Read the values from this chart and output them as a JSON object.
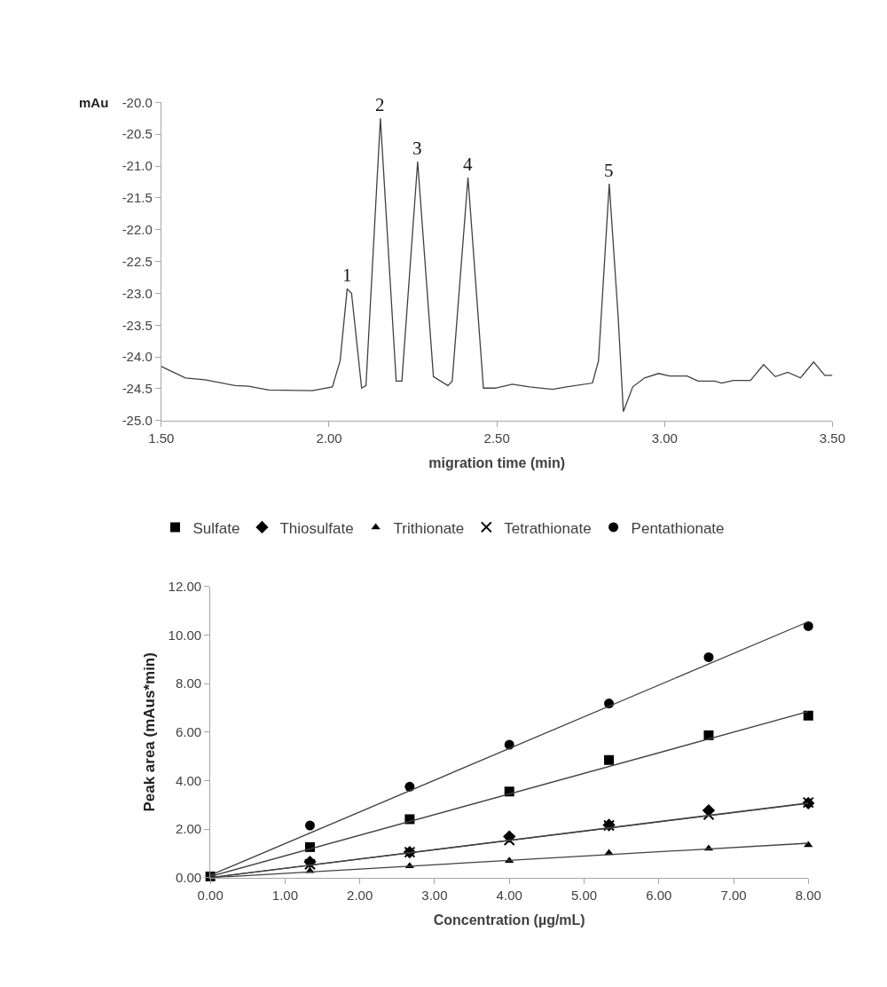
{
  "chart_data": [
    {
      "type": "line",
      "xlabel": "migration time (min)",
      "ylabel": "mAu",
      "xlim": [
        1.5,
        3.5
      ],
      "ylim": [
        -25.0,
        -20.0
      ],
      "xticks": [
        {
          "value": 1.5,
          "label": "1.50"
        },
        {
          "value": 2.0,
          "label": "2.00"
        },
        {
          "value": 2.5,
          "label": "2.50"
        },
        {
          "value": 3.0,
          "label": "3.00"
        },
        {
          "value": 3.5,
          "label": "3.50"
        }
      ],
      "yticks": [
        {
          "value": -25.0,
          "label": "-25.0"
        },
        {
          "value": -24.5,
          "label": "-24.5"
        },
        {
          "value": -24.0,
          "label": "-24.0"
        },
        {
          "value": -23.5,
          "label": "-23.5"
        },
        {
          "value": -23.0,
          "label": "-23.0"
        },
        {
          "value": -22.5,
          "label": "-22.5"
        },
        {
          "value": -22.0,
          "label": "-22.0"
        },
        {
          "value": -21.5,
          "label": "-21.5"
        },
        {
          "value": -21.0,
          "label": "-21.0"
        },
        {
          "value": -20.5,
          "label": "-20.5"
        },
        {
          "value": -20.0,
          "label": "-20.0"
        }
      ],
      "annotations": [
        {
          "text": "1",
          "x": 2.054,
          "y": -22.93
        },
        {
          "text": "2",
          "x": 2.153,
          "y": -20.25
        },
        {
          "text": "3",
          "x": 2.264,
          "y": -20.93
        },
        {
          "text": "4",
          "x": 2.414,
          "y": -21.18
        },
        {
          "text": "5",
          "x": 2.835,
          "y": -21.28
        }
      ],
      "series": [
        {
          "color": "#404040",
          "x": [
            1.5,
            1.572,
            1.63,
            1.72,
            1.76,
            1.82,
            1.95,
            2.01,
            2.033,
            2.054,
            2.067,
            2.097,
            2.11,
            2.153,
            2.2,
            2.217,
            2.264,
            2.311,
            2.354,
            2.367,
            2.414,
            2.46,
            2.495,
            2.546,
            2.597,
            2.666,
            2.708,
            2.785,
            2.803,
            2.835,
            2.862,
            2.877,
            2.905,
            2.94,
            2.982,
            3.015,
            3.067,
            3.1,
            3.15,
            3.17,
            3.205,
            3.256,
            3.295,
            3.33,
            3.367,
            3.405,
            3.444,
            3.477,
            3.5
          ],
          "values": [
            -24.15,
            -24.33,
            -24.36,
            -24.45,
            -24.46,
            -24.52,
            -24.53,
            -24.47,
            -24.06,
            -22.93,
            -23.0,
            -24.49,
            -24.45,
            -20.25,
            -24.38,
            -24.38,
            -20.93,
            -24.31,
            -24.45,
            -24.38,
            -21.18,
            -24.49,
            -24.49,
            -24.43,
            -24.47,
            -24.51,
            -24.47,
            -24.41,
            -24.06,
            -21.28,
            -23.41,
            -24.86,
            -24.47,
            -24.33,
            -24.26,
            -24.3,
            -24.3,
            -24.38,
            -24.38,
            -24.41,
            -24.37,
            -24.37,
            -24.12,
            -24.31,
            -24.24,
            -24.33,
            -24.08,
            -24.29,
            -24.29
          ]
        }
      ]
    },
    {
      "type": "scatter",
      "xlabel": "Concentration (µg/mL)",
      "ylabel": "Peak area (mAus*min)",
      "legend": "top",
      "xlim": [
        0,
        8
      ],
      "ylim": [
        0,
        12
      ],
      "xticks": [
        {
          "value": 0,
          "label": "0.00"
        },
        {
          "value": 1,
          "label": "1.00"
        },
        {
          "value": 2,
          "label": "2.00"
        },
        {
          "value": 3,
          "label": "3.00"
        },
        {
          "value": 4,
          "label": "4.00"
        },
        {
          "value": 5,
          "label": "5.00"
        },
        {
          "value": 6,
          "label": "6.00"
        },
        {
          "value": 7,
          "label": "7.00"
        },
        {
          "value": 8,
          "label": "8.00"
        }
      ],
      "yticks": [
        {
          "value": 0,
          "label": "0.00"
        },
        {
          "value": 2,
          "label": "2.00"
        },
        {
          "value": 4,
          "label": "4.00"
        },
        {
          "value": 6,
          "label": "6.00"
        },
        {
          "value": 8,
          "label": "8.00"
        },
        {
          "value": 10,
          "label": "10.00"
        },
        {
          "value": 12,
          "label": "12.00"
        }
      ],
      "x": [
        0,
        1.333,
        2.667,
        4.0,
        5.333,
        6.667,
        8.0
      ],
      "series": [
        {
          "name": "Sulfate",
          "color": "#000000",
          "marker": "square",
          "values": [
            0.05,
            1.26,
            2.41,
            3.55,
            4.85,
            5.87,
            6.68
          ]
        },
        {
          "name": "Thiosulfate",
          "color": "#000000",
          "marker": "diamond",
          "values": [
            null,
            0.65,
            1.05,
            1.69,
            2.17,
            2.77,
            3.07
          ]
        },
        {
          "name": "Trithionate",
          "color": "#000000",
          "marker": "triangle",
          "values": [
            null,
            0.28,
            0.48,
            0.7,
            1.02,
            1.2,
            1.35
          ]
        },
        {
          "name": "Tetrathionate",
          "color": "#000000",
          "marker": "cross",
          "values": [
            null,
            0.55,
            1.05,
            1.55,
            2.15,
            2.6,
            3.1
          ]
        },
        {
          "name": "Pentathionate",
          "color": "#000000",
          "marker": "circle",
          "values": [
            null,
            2.15,
            3.75,
            5.48,
            7.18,
            9.09,
            10.37
          ]
        },
        {
          "type": "line",
          "color": "#404040",
          "x": [
            0,
            8
          ],
          "values": [
            0.1,
            10.55
          ]
        },
        {
          "type": "line",
          "color": "#404040",
          "x": [
            0,
            8
          ],
          "values": [
            0.05,
            6.85
          ]
        },
        {
          "type": "line",
          "color": "#404040",
          "x": [
            0,
            8
          ],
          "values": [
            0.0,
            3.08
          ]
        },
        {
          "type": "line",
          "color": "#404040",
          "x": [
            0,
            8
          ],
          "values": [
            0.0,
            3.06
          ]
        },
        {
          "type": "line",
          "color": "#404040",
          "x": [
            0,
            8
          ],
          "values": [
            0.0,
            1.42
          ]
        }
      ]
    }
  ]
}
